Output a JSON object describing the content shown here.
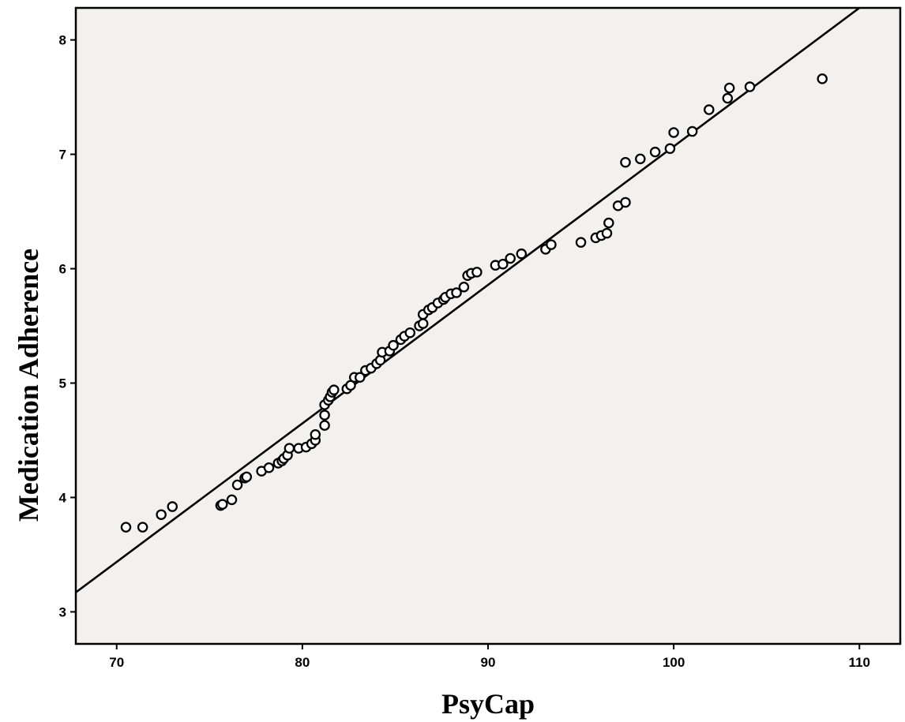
{
  "chart_data": {
    "type": "scatter",
    "title": "",
    "xlabel": "PsyCap",
    "ylabel": "Medication Adherence",
    "xlim": [
      67.8,
      112.2
    ],
    "ylim": [
      2.72,
      8.28
    ],
    "x_ticks": [
      70,
      80,
      90,
      100,
      110
    ],
    "y_ticks": [
      3,
      4,
      5,
      6,
      7,
      8
    ],
    "x_tick_labels": [
      "70",
      "80",
      "90",
      "100",
      "110"
    ],
    "y_tick_labels": [
      "3",
      "4",
      "5",
      "6",
      "7",
      "8"
    ],
    "grid": false,
    "legend": "none",
    "colors": {
      "plot_background": "#f3f1ee",
      "marker_edge": "#000000",
      "marker_fill": "#ffffff",
      "line": "#000000"
    },
    "fit_line": {
      "x": [
        67.8,
        110.0
      ],
      "y": [
        3.17,
        8.28
      ]
    },
    "series": [
      {
        "points": [
          [
            70.5,
            3.74
          ],
          [
            71.4,
            3.74
          ],
          [
            72.4,
            3.85
          ],
          [
            73.0,
            3.92
          ],
          [
            75.6,
            3.93
          ],
          [
            75.7,
            3.94
          ],
          [
            76.2,
            3.98
          ],
          [
            76.5,
            4.11
          ],
          [
            76.9,
            4.17
          ],
          [
            77.0,
            4.18
          ],
          [
            77.8,
            4.23
          ],
          [
            78.2,
            4.26
          ],
          [
            78.7,
            4.3
          ],
          [
            78.9,
            4.32
          ],
          [
            79.0,
            4.34
          ],
          [
            79.2,
            4.37
          ],
          [
            79.3,
            4.43
          ],
          [
            79.8,
            4.43
          ],
          [
            80.2,
            4.44
          ],
          [
            80.5,
            4.47
          ],
          [
            80.7,
            4.5
          ],
          [
            80.7,
            4.55
          ],
          [
            81.2,
            4.63
          ],
          [
            81.2,
            4.72
          ],
          [
            81.2,
            4.81
          ],
          [
            81.4,
            4.85
          ],
          [
            81.5,
            4.88
          ],
          [
            81.6,
            4.92
          ],
          [
            81.7,
            4.94
          ],
          [
            82.4,
            4.95
          ],
          [
            82.6,
            4.98
          ],
          [
            82.8,
            5.05
          ],
          [
            83.1,
            5.05
          ],
          [
            83.4,
            5.11
          ],
          [
            83.7,
            5.13
          ],
          [
            84.0,
            5.17
          ],
          [
            84.2,
            5.2
          ],
          [
            84.3,
            5.27
          ],
          [
            84.7,
            5.28
          ],
          [
            84.9,
            5.33
          ],
          [
            85.3,
            5.38
          ],
          [
            85.5,
            5.41
          ],
          [
            85.8,
            5.44
          ],
          [
            86.3,
            5.5
          ],
          [
            86.5,
            5.52
          ],
          [
            86.5,
            5.6
          ],
          [
            86.8,
            5.64
          ],
          [
            87.0,
            5.66
          ],
          [
            87.3,
            5.7
          ],
          [
            87.6,
            5.73
          ],
          [
            87.7,
            5.75
          ],
          [
            88.0,
            5.78
          ],
          [
            88.3,
            5.79
          ],
          [
            88.7,
            5.84
          ],
          [
            88.9,
            5.94
          ],
          [
            89.1,
            5.96
          ],
          [
            89.4,
            5.97
          ],
          [
            90.4,
            6.03
          ],
          [
            90.8,
            6.04
          ],
          [
            91.2,
            6.09
          ],
          [
            91.8,
            6.13
          ],
          [
            93.1,
            6.17
          ],
          [
            93.4,
            6.21
          ],
          [
            95.0,
            6.23
          ],
          [
            95.8,
            6.27
          ],
          [
            96.1,
            6.29
          ],
          [
            96.4,
            6.31
          ],
          [
            96.5,
            6.4
          ],
          [
            97.0,
            6.55
          ],
          [
            97.4,
            6.58
          ],
          [
            97.4,
            6.93
          ],
          [
            98.2,
            6.96
          ],
          [
            99.0,
            7.02
          ],
          [
            99.8,
            7.05
          ],
          [
            100.0,
            7.19
          ],
          [
            101.0,
            7.2
          ],
          [
            101.9,
            7.39
          ],
          [
            102.9,
            7.49
          ],
          [
            103.0,
            7.58
          ],
          [
            104.1,
            7.59
          ],
          [
            108.0,
            7.66
          ]
        ]
      }
    ]
  }
}
